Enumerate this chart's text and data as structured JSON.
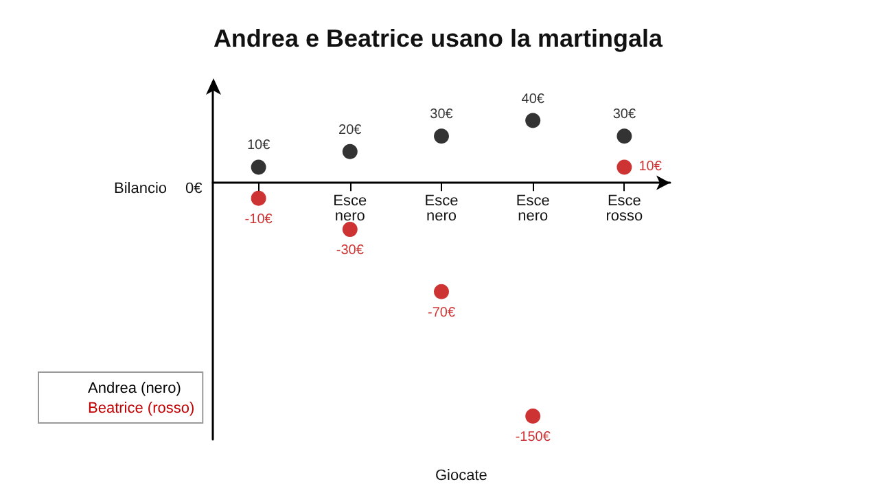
{
  "chart_data": {
    "type": "scatter",
    "title": "Andrea e Beatrice usano la martingala",
    "xlabel": "Giocate",
    "ylabel": "Bilancio",
    "annotations": [
      "0€"
    ],
    "categories": [
      null,
      "Esce nero",
      "Esce nero",
      "Esce nero",
      "Esce rosso"
    ],
    "series": [
      {
        "name": "Andrea (nero)",
        "color": "#000000",
        "values": [
          10,
          20,
          30,
          40,
          30
        ],
        "value_labels": [
          "10€",
          "20€",
          "30€",
          "40€",
          "30€"
        ]
      },
      {
        "name": "Beatrice (rosso)",
        "color": "#c00000",
        "values": [
          -10,
          -30,
          -70,
          -150,
          10
        ],
        "value_labels": [
          "-10€",
          "-30€",
          "-70€",
          "-150€",
          "10€"
        ]
      }
    ],
    "grid": false,
    "legend": "bottom left",
    "marker": "circle"
  }
}
